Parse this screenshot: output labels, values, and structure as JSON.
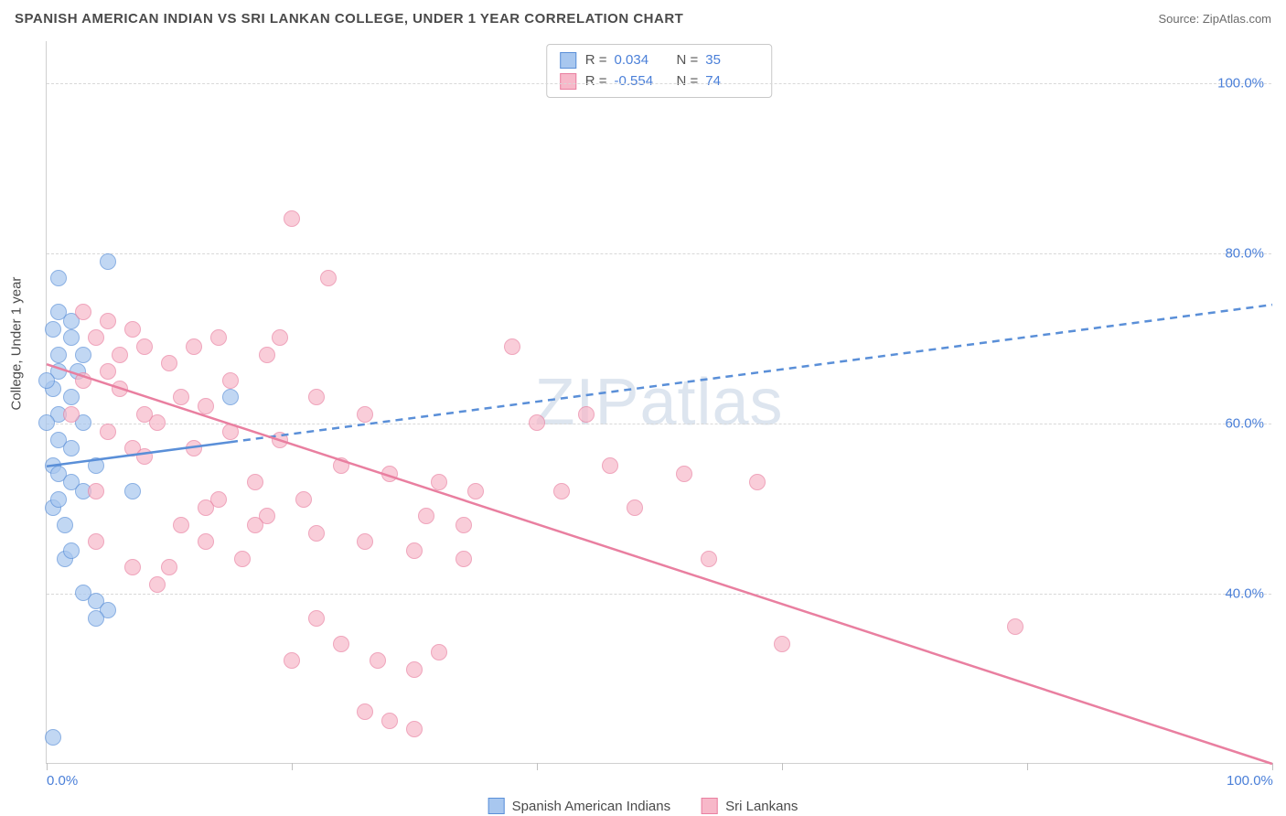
{
  "title": "SPANISH AMERICAN INDIAN VS SRI LANKAN COLLEGE, UNDER 1 YEAR CORRELATION CHART",
  "source": "Source: ZipAtlas.com",
  "watermark": "ZIPatlas",
  "y_axis_label": "College, Under 1 year",
  "chart": {
    "type": "scatter",
    "background_color": "#ffffff",
    "grid_color": "#d8d8d8",
    "axis_color": "#d0d0d0",
    "tick_label_color": "#4a7fd8",
    "axis_label_color": "#4a4a4a",
    "xlim": [
      0,
      100
    ],
    "ylim": [
      20,
      105
    ],
    "y_ticks": [
      40,
      60,
      80,
      100
    ],
    "y_tick_labels": [
      "40.0%",
      "60.0%",
      "80.0%",
      "100.0%"
    ],
    "x_ticks": [
      0,
      20,
      40,
      60,
      80,
      100
    ],
    "x_tick_labels_shown": {
      "0": "0.0%",
      "100": "100.0%"
    },
    "marker_radius": 9,
    "marker_stroke_width": 1.5,
    "fill_opacity": 0.25
  },
  "series": [
    {
      "name": "Spanish American Indians",
      "color_fill": "#a8c7ef",
      "color_stroke": "#5a8fd8",
      "R": "0.034",
      "N": "35",
      "trend": {
        "x1": 0,
        "y1": 55,
        "x2": 100,
        "y2": 74,
        "solid_until_x": 15,
        "stroke_width": 2.5,
        "dash": "8,6"
      },
      "points": [
        [
          1,
          77
        ],
        [
          5,
          79
        ],
        [
          1,
          73
        ],
        [
          2,
          72
        ],
        [
          2,
          70
        ],
        [
          1,
          68
        ],
        [
          3,
          68
        ],
        [
          1,
          66
        ],
        [
          0.5,
          64
        ],
        [
          2,
          63
        ],
        [
          1,
          61
        ],
        [
          3,
          60
        ],
        [
          1,
          58
        ],
        [
          2,
          57
        ],
        [
          0.5,
          55
        ],
        [
          4,
          55
        ],
        [
          1,
          54
        ],
        [
          2,
          53
        ],
        [
          3,
          52
        ],
        [
          0.5,
          50
        ],
        [
          1.5,
          44
        ],
        [
          3,
          40
        ],
        [
          4,
          39
        ],
        [
          5,
          38
        ],
        [
          4,
          37
        ],
        [
          0.5,
          23
        ],
        [
          15,
          63
        ],
        [
          7,
          52
        ],
        [
          0,
          65
        ],
        [
          0.5,
          71
        ],
        [
          2.5,
          66
        ],
        [
          1,
          51
        ],
        [
          1.5,
          48
        ],
        [
          2,
          45
        ],
        [
          0,
          60
        ]
      ]
    },
    {
      "name": "Sri Lankans",
      "color_fill": "#f7b8c9",
      "color_stroke": "#e97fa0",
      "R": "-0.554",
      "N": "74",
      "trend": {
        "x1": 0,
        "y1": 67,
        "x2": 100,
        "y2": 20,
        "stroke_width": 2.5
      },
      "points": [
        [
          20,
          84
        ],
        [
          3,
          73
        ],
        [
          5,
          72
        ],
        [
          7,
          71
        ],
        [
          4,
          70
        ],
        [
          8,
          69
        ],
        [
          12,
          69
        ],
        [
          14,
          70
        ],
        [
          18,
          68
        ],
        [
          10,
          67
        ],
        [
          5,
          66
        ],
        [
          6,
          64
        ],
        [
          11,
          63
        ],
        [
          13,
          62
        ],
        [
          22,
          63
        ],
        [
          26,
          61
        ],
        [
          9,
          60
        ],
        [
          15,
          59
        ],
        [
          19,
          58
        ],
        [
          7,
          57
        ],
        [
          8,
          56
        ],
        [
          24,
          55
        ],
        [
          28,
          54
        ],
        [
          32,
          53
        ],
        [
          4,
          52
        ],
        [
          14,
          51
        ],
        [
          18,
          49
        ],
        [
          22,
          47
        ],
        [
          26,
          46
        ],
        [
          30,
          45
        ],
        [
          34,
          44
        ],
        [
          10,
          43
        ],
        [
          23,
          77
        ],
        [
          19,
          70
        ],
        [
          38,
          69
        ],
        [
          42,
          52
        ],
        [
          44,
          61
        ],
        [
          48,
          50
        ],
        [
          52,
          54
        ],
        [
          54,
          44
        ],
        [
          58,
          53
        ],
        [
          79,
          36
        ],
        [
          24,
          34
        ],
        [
          27,
          32
        ],
        [
          30,
          31
        ],
        [
          32,
          33
        ],
        [
          26,
          26
        ],
        [
          28,
          25
        ],
        [
          30,
          24
        ],
        [
          22,
          37
        ],
        [
          20,
          32
        ],
        [
          13,
          46
        ],
        [
          16,
          44
        ],
        [
          6,
          68
        ],
        [
          3,
          65
        ],
        [
          2,
          61
        ],
        [
          60,
          34
        ],
        [
          4,
          46
        ],
        [
          7,
          43
        ],
        [
          9,
          41
        ],
        [
          11,
          48
        ],
        [
          13,
          50
        ],
        [
          46,
          55
        ],
        [
          31,
          49
        ],
        [
          34,
          48
        ],
        [
          12,
          57
        ],
        [
          17,
          53
        ],
        [
          21,
          51
        ],
        [
          5,
          59
        ],
        [
          8,
          61
        ],
        [
          15,
          65
        ],
        [
          17,
          48
        ],
        [
          35,
          52
        ],
        [
          40,
          60
        ]
      ]
    }
  ],
  "stats_labels": {
    "R": "R =",
    "N": "N ="
  },
  "legend": {
    "items": [
      "Spanish American Indians",
      "Sri Lankans"
    ]
  }
}
